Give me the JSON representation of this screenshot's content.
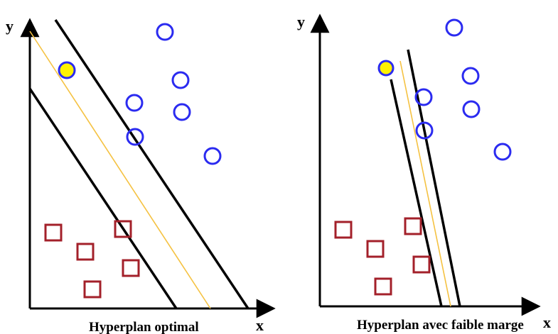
{
  "colors": {
    "circle_stroke": "#2b2bf0",
    "support_circle_fill": "#fff200",
    "square_stroke": "#a3202a",
    "hyperplane": "#f5c242",
    "margin_line": "#000000",
    "axis": "#000000"
  },
  "panels": [
    {
      "id": "left",
      "caption": "Hyperplan optimal",
      "y_axis_label": "y",
      "x_axis_label": "x"
    },
    {
      "id": "right",
      "caption": "Hyperplan avec faible marge",
      "y_axis_label": "y",
      "x_axis_label": "x"
    }
  ]
}
